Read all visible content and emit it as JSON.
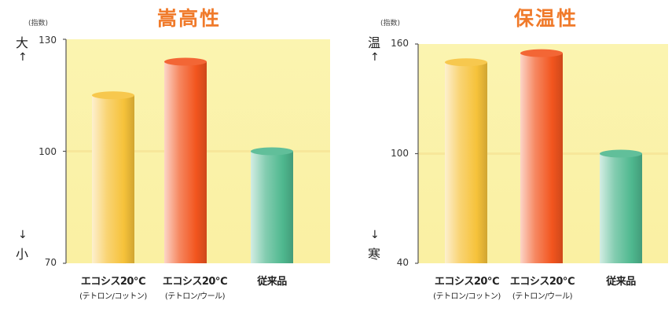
{
  "chart_data": [
    {
      "type": "bar",
      "title": "嵩高性",
      "unit_label": "(指数)",
      "direction_top": "大",
      "direction_bottom": "小",
      "ylim": [
        70,
        130
      ],
      "yticks": [
        "130",
        "100",
        "70"
      ],
      "categories": [
        {
          "main": "エコシス20℃",
          "sub": "(テトロン/コットン)"
        },
        {
          "main": "エコシス20℃",
          "sub": "(テトロン/ウール)"
        },
        {
          "main": "従来品",
          "sub": ""
        }
      ],
      "values": [
        115,
        124,
        100
      ],
      "colors": [
        "#f6c23a",
        "#f2551e",
        "#4fb88f"
      ]
    },
    {
      "type": "bar",
      "title": "保温性",
      "unit_label": "(指数)",
      "direction_top": "温",
      "direction_bottom": "寒",
      "ylim": [
        40,
        160
      ],
      "yticks": [
        "160",
        "100",
        "40"
      ],
      "categories": [
        {
          "main": "エコシス20℃",
          "sub": "(テトロン/コットン)"
        },
        {
          "main": "エコシス20℃",
          "sub": "(テトロン/ウール)"
        },
        {
          "main": "従来品",
          "sub": ""
        }
      ],
      "values": [
        150,
        155,
        100
      ],
      "colors": [
        "#f6c23a",
        "#f2551e",
        "#4fb88f"
      ]
    }
  ]
}
